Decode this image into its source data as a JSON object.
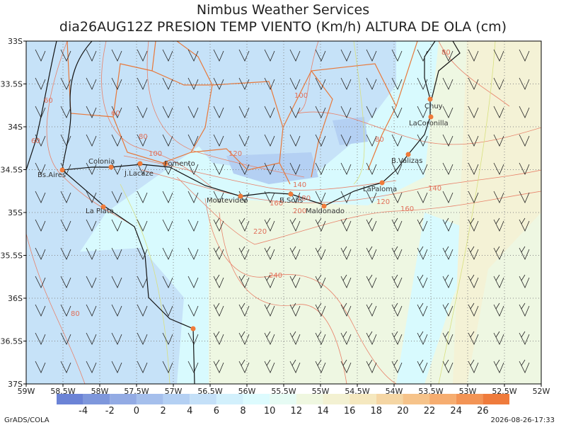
{
  "header": {
    "title": "Nimbus Weather Services",
    "subtitle": "dia26AUG12Z PRESION TEMP VIENTO (Km/h) ALTURA DE OLA (cm)"
  },
  "map": {
    "lat_labels": [
      "33S",
      "33.5S",
      "34S",
      "34.5S",
      "35S",
      "35.5S",
      "36S",
      "36.5S",
      "37S"
    ],
    "lon_labels": [
      "59W",
      "58.5W",
      "58W",
      "57.5W",
      "57W",
      "56.5W",
      "56W",
      "55.5W",
      "55W",
      "54.5W",
      "54W",
      "53.5W",
      "53W",
      "52.5W",
      "52W"
    ],
    "cities": [
      "Bs.Aires",
      "Colonia",
      "J.Lacaze",
      "Fomento",
      "La Plata",
      "Montevideo",
      "B.Solis",
      "Maldonado",
      "LaPaloma",
      "B.Valizas",
      "Chuy",
      "LaCoronilla"
    ],
    "contour_labels": [
      "60",
      "60",
      "60",
      "80",
      "100",
      "100",
      "120",
      "80",
      "140",
      "160",
      "180",
      "200",
      "120",
      "140",
      "160",
      "220",
      "240",
      "80",
      "80"
    ]
  },
  "colorbar": {
    "labels": [
      "-4",
      "-2",
      "0",
      "2",
      "4",
      "6",
      "8",
      "10",
      "12",
      "14",
      "16",
      "18",
      "20",
      "22",
      "24",
      "26"
    ],
    "colors": [
      "#6b83d6",
      "#7e97dc",
      "#93abe4",
      "#a5bfec",
      "#b4d0f3",
      "#c4e0f8",
      "#d2f0fc",
      "#ddfbfe",
      "#e6fbf4",
      "#eff7e0",
      "#f3f1d2",
      "#f5e8bf",
      "#f5d6a4",
      "#f6c38a",
      "#f6ad70",
      "#f39455",
      "#ef7b3c"
    ]
  },
  "footer": {
    "left": "GrADS/COLA",
    "right": "2026-08-26-17:33"
  }
}
